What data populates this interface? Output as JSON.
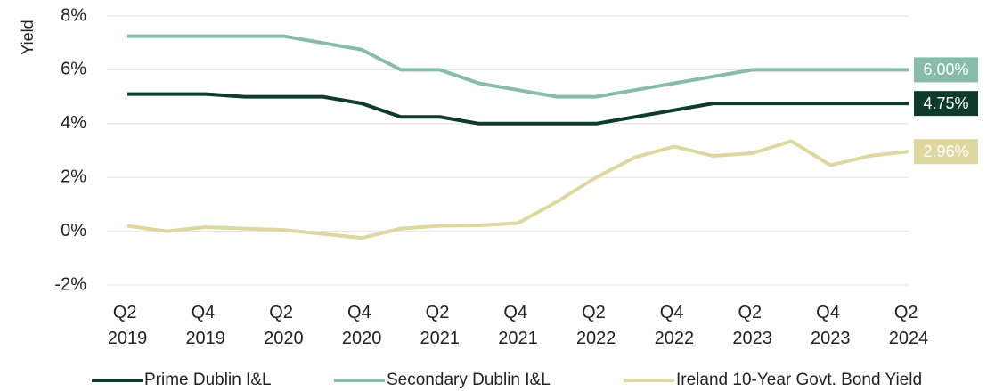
{
  "chart_data": {
    "type": "line",
    "y_label": "Yield",
    "categories": [
      "Q2 2019",
      null,
      "Q4 2019",
      null,
      "Q2 2020",
      null,
      "Q4 2020",
      null,
      "Q2 2021",
      null,
      "Q4 2021",
      null,
      "Q2 2022",
      null,
      "Q4 2022",
      null,
      "Q2 2023",
      null,
      "Q4 2023",
      null,
      "Q2 2024"
    ],
    "ylim": [
      -2,
      8
    ],
    "yticks": [
      {
        "value": -2,
        "label": "-2%"
      },
      {
        "value": 0,
        "label": "0%"
      },
      {
        "value": 2,
        "label": "2%"
      },
      {
        "value": 4,
        "label": "4%"
      },
      {
        "value": 6,
        "label": "6%"
      },
      {
        "value": 8,
        "label": "8%"
      }
    ],
    "grid": true,
    "legend": "bottom",
    "series": [
      {
        "name": "Prime Dublin I&L",
        "color": "#0e3b2b",
        "values": [
          5.1,
          5.1,
          5.1,
          5.0,
          5.0,
          5.0,
          4.75,
          4.25,
          4.25,
          4.0,
          4.0,
          4.0,
          4.0,
          4.25,
          4.5,
          4.75,
          4.75,
          4.75,
          4.75,
          4.75,
          4.75
        ],
        "value_labels": [
          null,
          null,
          null,
          null,
          null,
          null,
          null,
          null,
          null,
          null,
          null,
          null,
          null,
          null,
          null,
          null,
          null,
          null,
          null,
          null,
          "4.75%"
        ]
      },
      {
        "name": "Secondary Dublin I&L",
        "color": "#86bca9",
        "values": [
          7.25,
          7.25,
          7.25,
          7.25,
          7.25,
          7.0,
          6.75,
          6.0,
          6.0,
          5.5,
          5.25,
          5.0,
          5.0,
          5.25,
          5.5,
          5.75,
          6.0,
          6.0,
          6.0,
          6.0,
          6.0
        ],
        "value_labels": [
          null,
          null,
          null,
          null,
          null,
          null,
          null,
          null,
          null,
          null,
          null,
          null,
          null,
          null,
          null,
          null,
          null,
          null,
          null,
          null,
          "6.00%"
        ]
      },
      {
        "name": "Ireland 10-Year Govt. Bond Yield",
        "color": "#dcd8a0",
        "values": [
          0.2,
          0.0,
          0.15,
          0.1,
          0.05,
          -0.1,
          -0.25,
          0.1,
          0.2,
          0.22,
          0.3,
          1.1,
          2.0,
          2.75,
          3.15,
          2.8,
          2.9,
          3.35,
          2.45,
          2.8,
          2.96
        ],
        "value_labels": [
          null,
          null,
          null,
          null,
          null,
          null,
          null,
          null,
          null,
          null,
          null,
          null,
          null,
          null,
          null,
          null,
          null,
          null,
          null,
          null,
          "2.96%"
        ]
      }
    ]
  }
}
